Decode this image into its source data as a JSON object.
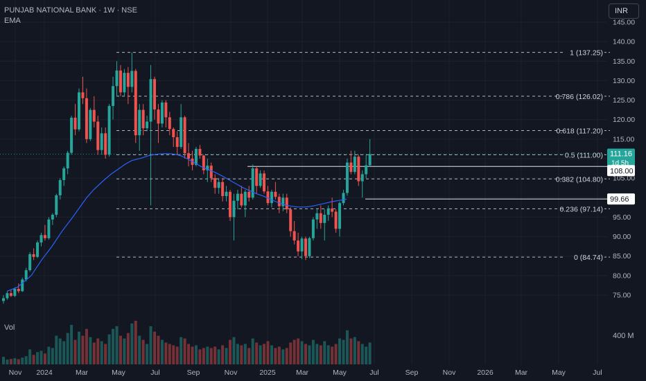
{
  "header": {
    "symbol_title": "PUNJAB NATIONAL BANK · 1W · NSE",
    "indicator": "EMA",
    "currency_button": "INR"
  },
  "colors": {
    "background": "#131722",
    "up": "#26a69a",
    "down": "#ef5350",
    "ema": "#2962ff",
    "axis_text": "#b2b5be",
    "level_line": "#d1d4dc"
  },
  "chart_data": {
    "type": "candlestick",
    "y_axis": {
      "ticks": [
        "75.00",
        "80.00",
        "85.00",
        "90.00",
        "95.00",
        "100.00",
        "105.00",
        "110.00",
        "115.00",
        "120.00",
        "125.00",
        "130.00",
        "135.00",
        "140.00",
        "145.00"
      ],
      "ylim": [
        70.5,
        146.5
      ]
    },
    "x_axis": {
      "labels": [
        "Nov",
        "2024",
        "Mar",
        "May",
        "Jul",
        "Sep",
        "Nov",
        "2025",
        "Mar",
        "May",
        "Jul",
        "Sep",
        "Nov",
        "2026",
        "Mar",
        "May",
        "Jul"
      ]
    },
    "fib_levels": [
      {
        "label": "1 (137.25)",
        "value": 137.25
      },
      {
        "label": "0.786 (126.02)",
        "value": 126.02
      },
      {
        "label": "0.618 (117.20)",
        "value": 117.2
      },
      {
        "label": "0.5 (111.00)",
        "value": 111.0
      },
      {
        "label": "0.382 (104.80)",
        "value": 104.8
      },
      {
        "label": "0.236 (97.14)",
        "value": 97.14
      },
      {
        "label": "0 (84.74)",
        "value": 84.74
      }
    ],
    "price_tags": [
      {
        "value": "111.16",
        "sub": "1d 5h",
        "level": 111.16,
        "style": "last"
      },
      {
        "value": "108.00",
        "level": 108.0,
        "style": "line"
      },
      {
        "value": "99.66",
        "level": 99.66,
        "style": "line"
      }
    ],
    "volume_label": "Vol",
    "volume_tick": "400 M",
    "series": [
      {
        "o": 73.5,
        "h": 75,
        "l": 72.8,
        "c": 74.2
      },
      {
        "o": 74.2,
        "h": 76,
        "l": 73.8,
        "c": 75.5
      },
      {
        "o": 75.5,
        "h": 76.5,
        "l": 74.5,
        "c": 74.8
      },
      {
        "o": 74.8,
        "h": 77,
        "l": 74.5,
        "c": 76.6
      },
      {
        "o": 76.6,
        "h": 78,
        "l": 75.5,
        "c": 76
      },
      {
        "o": 76,
        "h": 79.5,
        "l": 75.8,
        "c": 79
      },
      {
        "o": 79,
        "h": 82,
        "l": 78.5,
        "c": 81.4
      },
      {
        "o": 81.4,
        "h": 86,
        "l": 81,
        "c": 85.5
      },
      {
        "o": 85.5,
        "h": 87,
        "l": 84,
        "c": 84.8
      },
      {
        "o": 84.8,
        "h": 89,
        "l": 84.5,
        "c": 88.5
      },
      {
        "o": 88.5,
        "h": 91,
        "l": 87.5,
        "c": 90.4
      },
      {
        "o": 90.4,
        "h": 93,
        "l": 89,
        "c": 89.6
      },
      {
        "o": 89.6,
        "h": 95,
        "l": 89.2,
        "c": 94.4
      },
      {
        "o": 94.4,
        "h": 96,
        "l": 93,
        "c": 95.6
      },
      {
        "o": 95.6,
        "h": 101,
        "l": 95,
        "c": 100.6
      },
      {
        "o": 100.6,
        "h": 105,
        "l": 99.5,
        "c": 104.5
      },
      {
        "o": 104.5,
        "h": 108,
        "l": 103,
        "c": 107.5
      },
      {
        "o": 107.5,
        "h": 112,
        "l": 106,
        "c": 111.5
      },
      {
        "o": 111.5,
        "h": 121,
        "l": 111,
        "c": 120.5
      },
      {
        "o": 120.5,
        "h": 124,
        "l": 116,
        "c": 117.5
      },
      {
        "o": 117.5,
        "h": 128,
        "l": 117,
        "c": 127
      },
      {
        "o": 127,
        "h": 131,
        "l": 124,
        "c": 125.5
      },
      {
        "o": 125.5,
        "h": 128,
        "l": 114,
        "c": 115
      },
      {
        "o": 115,
        "h": 123,
        "l": 114.5,
        "c": 122.5
      },
      {
        "o": 122.5,
        "h": 126,
        "l": 118,
        "c": 119.5
      },
      {
        "o": 119.5,
        "h": 121,
        "l": 111,
        "c": 112.2
      },
      {
        "o": 112.2,
        "h": 118,
        "l": 111,
        "c": 116.5
      },
      {
        "o": 116.5,
        "h": 118,
        "l": 110,
        "c": 111
      },
      {
        "o": 111,
        "h": 124,
        "l": 110.5,
        "c": 123.5
      },
      {
        "o": 123.5,
        "h": 131,
        "l": 120,
        "c": 128.6
      },
      {
        "o": 128.6,
        "h": 135,
        "l": 126,
        "c": 132.6
      },
      {
        "o": 132.6,
        "h": 134,
        "l": 126,
        "c": 127
      },
      {
        "o": 127,
        "h": 133,
        "l": 126,
        "c": 132
      },
      {
        "o": 132,
        "h": 133.5,
        "l": 124,
        "c": 128.4
      },
      {
        "o": 128.4,
        "h": 137.25,
        "l": 127,
        "c": 132.5
      },
      {
        "o": 132.5,
        "h": 133,
        "l": 114,
        "c": 116
      },
      {
        "o": 116,
        "h": 124,
        "l": 112,
        "c": 122.5
      },
      {
        "o": 122.5,
        "h": 124,
        "l": 116,
        "c": 117.8
      },
      {
        "o": 117.8,
        "h": 121,
        "l": 117,
        "c": 119.5
      },
      {
        "o": 119.5,
        "h": 134,
        "l": 98,
        "c": 130.4
      },
      {
        "o": 130.4,
        "h": 131,
        "l": 120,
        "c": 122.6
      },
      {
        "o": 122.6,
        "h": 124,
        "l": 114,
        "c": 119
      },
      {
        "o": 119,
        "h": 125,
        "l": 118,
        "c": 124.4
      },
      {
        "o": 124.4,
        "h": 125,
        "l": 118,
        "c": 120.6
      },
      {
        "o": 120.6,
        "h": 122,
        "l": 116,
        "c": 117.6
      },
      {
        "o": 117.6,
        "h": 118,
        "l": 113,
        "c": 115.5
      },
      {
        "o": 115.5,
        "h": 117,
        "l": 111,
        "c": 113
      },
      {
        "o": 113,
        "h": 124,
        "l": 112.5,
        "c": 120.6
      },
      {
        "o": 120.6,
        "h": 121,
        "l": 110,
        "c": 111.4
      },
      {
        "o": 111.4,
        "h": 114,
        "l": 108,
        "c": 110
      },
      {
        "o": 110,
        "h": 112,
        "l": 107,
        "c": 108.4
      },
      {
        "o": 108.4,
        "h": 113,
        "l": 108,
        "c": 112.5
      },
      {
        "o": 112.5,
        "h": 113.5,
        "l": 110,
        "c": 110.8
      },
      {
        "o": 110.8,
        "h": 111,
        "l": 106,
        "c": 107
      },
      {
        "o": 107,
        "h": 110,
        "l": 104,
        "c": 108.2
      },
      {
        "o": 108.2,
        "h": 109,
        "l": 104,
        "c": 105
      },
      {
        "o": 105,
        "h": 106,
        "l": 101,
        "c": 102.5
      },
      {
        "o": 102.5,
        "h": 105,
        "l": 101,
        "c": 104
      },
      {
        "o": 104,
        "h": 105,
        "l": 99,
        "c": 100.4
      },
      {
        "o": 100.4,
        "h": 103,
        "l": 99,
        "c": 101.5
      },
      {
        "o": 101.5,
        "h": 102,
        "l": 94,
        "c": 95
      },
      {
        "o": 95,
        "h": 101,
        "l": 89,
        "c": 99.2
      },
      {
        "o": 99.2,
        "h": 102,
        "l": 97,
        "c": 101
      },
      {
        "o": 101,
        "h": 103,
        "l": 97.5,
        "c": 98
      },
      {
        "o": 98,
        "h": 102,
        "l": 95,
        "c": 101.5
      },
      {
        "o": 101.5,
        "h": 103,
        "l": 99,
        "c": 100
      },
      {
        "o": 100,
        "h": 108.5,
        "l": 99.5,
        "c": 107.5
      },
      {
        "o": 107.5,
        "h": 108,
        "l": 101,
        "c": 103
      },
      {
        "o": 103,
        "h": 107,
        "l": 102.5,
        "c": 106.2
      },
      {
        "o": 106.2,
        "h": 107,
        "l": 101,
        "c": 101.6
      },
      {
        "o": 101.6,
        "h": 103,
        "l": 98,
        "c": 98.6
      },
      {
        "o": 98.6,
        "h": 102,
        "l": 97.5,
        "c": 101.5
      },
      {
        "o": 101.5,
        "h": 104,
        "l": 99.5,
        "c": 100.2
      },
      {
        "o": 100.2,
        "h": 101,
        "l": 96,
        "c": 97.8
      },
      {
        "o": 97.8,
        "h": 101,
        "l": 96.5,
        "c": 100
      },
      {
        "o": 100,
        "h": 101,
        "l": 96,
        "c": 97
      },
      {
        "o": 97,
        "h": 97.5,
        "l": 90,
        "c": 91.4
      },
      {
        "o": 91.4,
        "h": 94,
        "l": 88,
        "c": 89
      },
      {
        "o": 89,
        "h": 91,
        "l": 85,
        "c": 86.2
      },
      {
        "o": 86.2,
        "h": 90,
        "l": 84.2,
        "c": 89.5
      },
      {
        "o": 89.5,
        "h": 90,
        "l": 84,
        "c": 85
      },
      {
        "o": 85,
        "h": 90,
        "l": 84.5,
        "c": 89.6
      },
      {
        "o": 89.6,
        "h": 95,
        "l": 89,
        "c": 94.4
      },
      {
        "o": 94.4,
        "h": 97,
        "l": 92,
        "c": 96
      },
      {
        "o": 96,
        "h": 98,
        "l": 92,
        "c": 93.5
      },
      {
        "o": 93.5,
        "h": 97,
        "l": 89,
        "c": 95.6
      },
      {
        "o": 95.6,
        "h": 98,
        "l": 94,
        "c": 97.2
      },
      {
        "o": 97.2,
        "h": 100,
        "l": 95,
        "c": 96.4
      },
      {
        "o": 96.4,
        "h": 97,
        "l": 91,
        "c": 92
      },
      {
        "o": 92,
        "h": 99,
        "l": 90,
        "c": 98.6
      },
      {
        "o": 98.6,
        "h": 102,
        "l": 98,
        "c": 101.2
      },
      {
        "o": 101.2,
        "h": 110,
        "l": 100.5,
        "c": 109
      },
      {
        "o": 109,
        "h": 112,
        "l": 106,
        "c": 106.6
      },
      {
        "o": 106.6,
        "h": 112,
        "l": 106,
        "c": 110.5
      },
      {
        "o": 110.5,
        "h": 111,
        "l": 103,
        "c": 104.2
      },
      {
        "o": 104.2,
        "h": 107,
        "l": 100,
        "c": 106
      },
      {
        "o": 106,
        "h": 111,
        "l": 105,
        "c": 108.3
      },
      {
        "o": 108.3,
        "h": 115,
        "l": 108,
        "c": 111.16
      }
    ],
    "ema": [
      [
        10,
        76
      ],
      [
        25,
        77
      ],
      [
        45,
        80
      ],
      [
        60,
        84
      ],
      [
        75,
        87.5
      ],
      [
        90,
        91.5
      ],
      [
        105,
        95
      ],
      [
        115,
        97.5
      ],
      [
        125,
        100
      ],
      [
        135,
        102
      ],
      [
        150,
        104.5
      ],
      [
        160,
        106
      ],
      [
        172,
        107.5
      ],
      [
        180,
        108.5
      ],
      [
        190,
        109.5
      ],
      [
        205,
        110.2
      ],
      [
        215,
        110.8
      ],
      [
        230,
        111.2
      ],
      [
        240,
        111.3
      ],
      [
        250,
        111.2
      ],
      [
        260,
        110.8
      ],
      [
        270,
        110
      ],
      [
        280,
        109
      ],
      [
        290,
        108
      ],
      [
        300,
        107.2
      ],
      [
        310,
        106.5
      ],
      [
        320,
        105.6
      ],
      [
        330,
        104.6
      ],
      [
        340,
        103.6
      ],
      [
        350,
        102.6
      ],
      [
        360,
        101.8
      ],
      [
        370,
        101
      ],
      [
        380,
        100.4
      ],
      [
        390,
        99.6
      ],
      [
        400,
        98.8
      ],
      [
        410,
        98.2
      ],
      [
        420,
        97.8
      ],
      [
        430,
        97.6
      ],
      [
        440,
        97.6
      ],
      [
        450,
        97.8
      ],
      [
        460,
        98.2
      ],
      [
        470,
        98.6
      ],
      [
        480,
        99
      ],
      [
        490,
        99.3
      ],
      [
        500,
        99.6
      ]
    ],
    "volume": [
      {
        "v": 55,
        "up": true
      },
      {
        "v": 35,
        "up": true
      },
      {
        "v": 40,
        "up": false
      },
      {
        "v": 45,
        "up": true
      },
      {
        "v": 38,
        "up": false
      },
      {
        "v": 50,
        "up": true
      },
      {
        "v": 60,
        "up": true
      },
      {
        "v": 110,
        "up": true
      },
      {
        "v": 70,
        "up": false
      },
      {
        "v": 90,
        "up": true
      },
      {
        "v": 100,
        "up": true
      },
      {
        "v": 80,
        "up": false
      },
      {
        "v": 130,
        "up": true
      },
      {
        "v": 120,
        "up": true
      },
      {
        "v": 210,
        "up": true
      },
      {
        "v": 190,
        "up": true
      },
      {
        "v": 170,
        "up": true
      },
      {
        "v": 230,
        "up": true
      },
      {
        "v": 290,
        "up": true
      },
      {
        "v": 180,
        "up": false
      },
      {
        "v": 240,
        "up": true
      },
      {
        "v": 210,
        "up": false
      },
      {
        "v": 260,
        "up": false
      },
      {
        "v": 200,
        "up": true
      },
      {
        "v": 160,
        "up": false
      },
      {
        "v": 190,
        "up": false
      },
      {
        "v": 170,
        "up": true
      },
      {
        "v": 150,
        "up": false
      },
      {
        "v": 220,
        "up": true
      },
      {
        "v": 260,
        "up": true
      },
      {
        "v": 280,
        "up": true
      },
      {
        "v": 210,
        "up": false
      },
      {
        "v": 190,
        "up": true
      },
      {
        "v": 230,
        "up": false
      },
      {
        "v": 300,
        "up": true
      },
      {
        "v": 320,
        "up": false
      },
      {
        "v": 210,
        "up": true
      },
      {
        "v": 180,
        "up": false
      },
      {
        "v": 150,
        "up": true
      },
      {
        "v": 280,
        "up": true
      },
      {
        "v": 240,
        "up": false
      },
      {
        "v": 210,
        "up": false
      },
      {
        "v": 180,
        "up": true
      },
      {
        "v": 160,
        "up": false
      },
      {
        "v": 150,
        "up": false
      },
      {
        "v": 140,
        "up": false
      },
      {
        "v": 130,
        "up": false
      },
      {
        "v": 200,
        "up": true
      },
      {
        "v": 190,
        "up": false
      },
      {
        "v": 150,
        "up": false
      },
      {
        "v": 130,
        "up": false
      },
      {
        "v": 140,
        "up": true
      },
      {
        "v": 110,
        "up": false
      },
      {
        "v": 120,
        "up": false
      },
      {
        "v": 130,
        "up": true
      },
      {
        "v": 120,
        "up": false
      },
      {
        "v": 130,
        "up": false
      },
      {
        "v": 110,
        "up": true
      },
      {
        "v": 140,
        "up": false
      },
      {
        "v": 120,
        "up": true
      },
      {
        "v": 180,
        "up": false
      },
      {
        "v": 200,
        "up": true
      },
      {
        "v": 150,
        "up": true
      },
      {
        "v": 140,
        "up": false
      },
      {
        "v": 150,
        "up": true
      },
      {
        "v": 120,
        "up": false
      },
      {
        "v": 190,
        "up": true
      },
      {
        "v": 160,
        "up": false
      },
      {
        "v": 140,
        "up": true
      },
      {
        "v": 150,
        "up": false
      },
      {
        "v": 170,
        "up": false
      },
      {
        "v": 140,
        "up": true
      },
      {
        "v": 120,
        "up": false
      },
      {
        "v": 130,
        "up": false
      },
      {
        "v": 110,
        "up": true
      },
      {
        "v": 120,
        "up": false
      },
      {
        "v": 160,
        "up": false
      },
      {
        "v": 180,
        "up": false
      },
      {
        "v": 190,
        "up": false
      },
      {
        "v": 170,
        "up": true
      },
      {
        "v": 150,
        "up": false
      },
      {
        "v": 140,
        "up": true
      },
      {
        "v": 180,
        "up": true
      },
      {
        "v": 150,
        "up": true
      },
      {
        "v": 140,
        "up": false
      },
      {
        "v": 170,
        "up": true
      },
      {
        "v": 140,
        "up": true
      },
      {
        "v": 130,
        "up": false
      },
      {
        "v": 150,
        "up": false
      },
      {
        "v": 190,
        "up": true
      },
      {
        "v": 180,
        "up": true
      },
      {
        "v": 250,
        "up": true
      },
      {
        "v": 190,
        "up": false
      },
      {
        "v": 200,
        "up": true
      },
      {
        "v": 170,
        "up": false
      },
      {
        "v": 150,
        "up": true
      },
      {
        "v": 130,
        "up": true
      },
      {
        "v": 160,
        "up": true
      }
    ]
  }
}
